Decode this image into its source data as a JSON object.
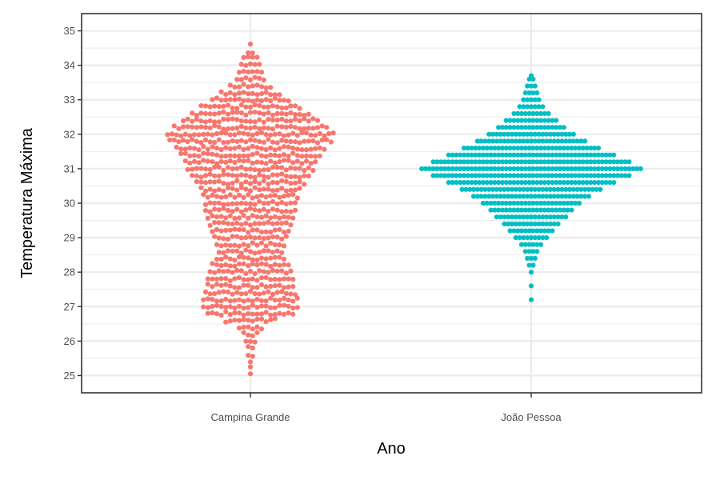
{
  "chart_data": {
    "type": "beeswarm",
    "title": "",
    "xlabel": "Ano",
    "ylabel": "Temperatura Máxima",
    "categories": [
      "Campina Grande",
      "João Pessoa"
    ],
    "ylim": [
      24.5,
      35.5
    ],
    "yticks": [
      "25",
      "26",
      "27",
      "28",
      "29",
      "30",
      "31",
      "32",
      "33",
      "34",
      "35"
    ],
    "grid": true,
    "legend": "none",
    "colors": [
      "#F8766D",
      "#00BFC4"
    ],
    "series": [
      {
        "category": "Campina Grande",
        "y_step": 0.1,
        "min": 25.0,
        "max": 34.6,
        "counts_by_y": [
          [
            25.0,
            1
          ],
          [
            25.2,
            1
          ],
          [
            25.4,
            1
          ],
          [
            25.6,
            2
          ],
          [
            25.8,
            2
          ],
          [
            26.0,
            3
          ],
          [
            26.2,
            4
          ],
          [
            26.4,
            6
          ],
          [
            26.6,
            12
          ],
          [
            26.8,
            20
          ],
          [
            27.0,
            22
          ],
          [
            27.2,
            22
          ],
          [
            27.4,
            21
          ],
          [
            27.6,
            20
          ],
          [
            27.8,
            20
          ],
          [
            28.0,
            19
          ],
          [
            28.2,
            18
          ],
          [
            28.4,
            16
          ],
          [
            28.6,
            15
          ],
          [
            28.8,
            16
          ],
          [
            29.0,
            17
          ],
          [
            29.2,
            18
          ],
          [
            29.4,
            19
          ],
          [
            29.6,
            20
          ],
          [
            29.8,
            21
          ],
          [
            30.0,
            21
          ],
          [
            30.2,
            22
          ],
          [
            30.4,
            23
          ],
          [
            30.6,
            25
          ],
          [
            30.8,
            27
          ],
          [
            31.0,
            29
          ],
          [
            31.2,
            30
          ],
          [
            31.4,
            32
          ],
          [
            31.6,
            34
          ],
          [
            31.8,
            37
          ],
          [
            32.0,
            38
          ],
          [
            32.2,
            35
          ],
          [
            32.4,
            31
          ],
          [
            32.6,
            27
          ],
          [
            32.8,
            23
          ],
          [
            33.0,
            18
          ],
          [
            33.2,
            14
          ],
          [
            33.4,
            10
          ],
          [
            33.6,
            7
          ],
          [
            33.8,
            6
          ],
          [
            34.0,
            5
          ],
          [
            34.2,
            4
          ],
          [
            34.4,
            2
          ],
          [
            34.6,
            1
          ]
        ]
      },
      {
        "category": "João Pessoa",
        "y_step": 0.1,
        "min": 27.2,
        "max": 33.7,
        "counts_by_y": [
          [
            27.2,
            1
          ],
          [
            27.6,
            1
          ],
          [
            28.0,
            1
          ],
          [
            28.2,
            2
          ],
          [
            28.4,
            3
          ],
          [
            28.6,
            4
          ],
          [
            28.8,
            6
          ],
          [
            29.0,
            9
          ],
          [
            29.2,
            12
          ],
          [
            29.4,
            15
          ],
          [
            29.6,
            19
          ],
          [
            29.8,
            22
          ],
          [
            30.0,
            26
          ],
          [
            30.2,
            31
          ],
          [
            30.4,
            37
          ],
          [
            30.6,
            44
          ],
          [
            30.8,
            52
          ],
          [
            31.0,
            58
          ],
          [
            31.2,
            52
          ],
          [
            31.4,
            44
          ],
          [
            31.6,
            36
          ],
          [
            31.8,
            29
          ],
          [
            32.0,
            23
          ],
          [
            32.2,
            18
          ],
          [
            32.4,
            14
          ],
          [
            32.6,
            10
          ],
          [
            32.8,
            7
          ],
          [
            33.0,
            5
          ],
          [
            33.2,
            4
          ],
          [
            33.4,
            3
          ],
          [
            33.6,
            2
          ],
          [
            33.7,
            1
          ]
        ]
      }
    ]
  }
}
